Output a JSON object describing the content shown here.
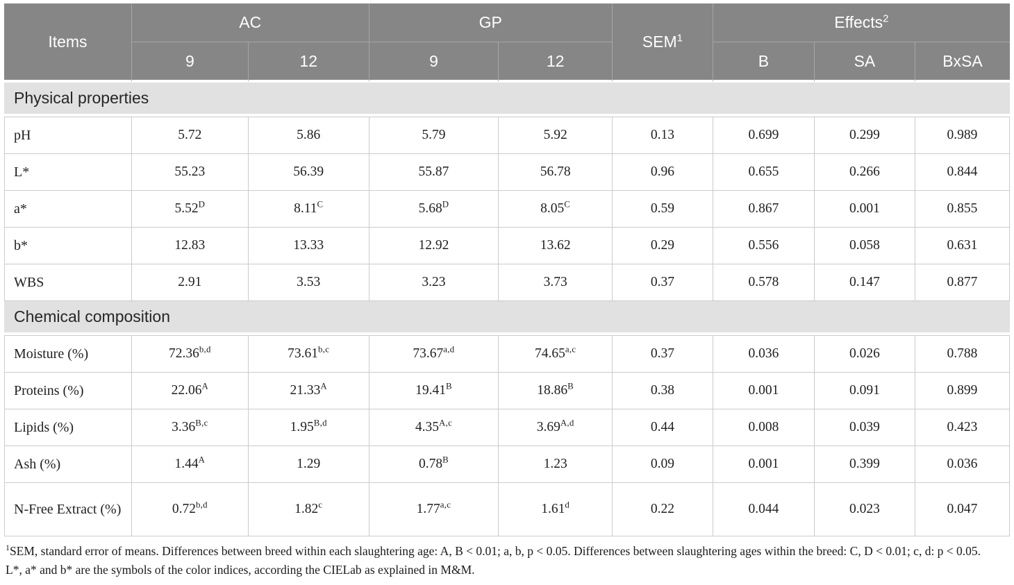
{
  "table": {
    "header": {
      "items_label": "Items",
      "groups": [
        {
          "label": "AC",
          "children": [
            "9",
            "12"
          ]
        },
        {
          "label": "GP",
          "children": [
            "9",
            "12"
          ]
        }
      ],
      "sem_label": "SEM^1",
      "effects": {
        "label": "Effects^2",
        "children": [
          "B",
          "SA",
          "BxSA"
        ]
      }
    },
    "col_widths_pct": [
      12.7,
      11.6,
      12.0,
      12.9,
      11.3,
      10.0,
      10.1,
      10.0,
      9.4
    ],
    "sections": [
      {
        "title": "Physical properties",
        "rows": [
          {
            "label": "pH",
            "cells": [
              "5.72",
              "5.86",
              "5.79",
              "5.92",
              "0.13",
              "0.699",
              "0.299",
              "0.989"
            ]
          },
          {
            "label": "L*",
            "cells": [
              "55.23",
              "56.39",
              "55.87",
              "56.78",
              "0.96",
              "0.655",
              "0.266",
              "0.844"
            ]
          },
          {
            "label": "a*",
            "cells": [
              "5.52^D",
              "8.11^C",
              "5.68^D",
              "8.05^C",
              "0.59",
              "0.867",
              "0.001",
              "0.855"
            ]
          },
          {
            "label": "b*",
            "cells": [
              "12.83",
              "13.33",
              "12.92",
              "13.62",
              "0.29",
              "0.556",
              "0.058",
              "0.631"
            ]
          },
          {
            "label": "WBS",
            "cells": [
              "2.91",
              "3.53",
              "3.23",
              "3.73",
              "0.37",
              "0.578",
              "0.147",
              "0.877"
            ]
          }
        ]
      },
      {
        "title": "Chemical composition",
        "rows": [
          {
            "label": "Moisture (%)",
            "cells": [
              "72.36^b,d",
              "73.61^b,c",
              "73.67^a,d",
              "74.65^a,c",
              "0.37",
              "0.036",
              "0.026",
              "0.788"
            ]
          },
          {
            "label": "Proteins (%)",
            "cells": [
              "22.06^A",
              "21.33^A",
              "19.41^B",
              "18.86^B",
              "0.38",
              "0.001",
              "0.091",
              "0.899"
            ]
          },
          {
            "label": "Lipids (%)",
            "cells": [
              "3.36^B,c",
              "1.95^B,d",
              "4.35^A,c",
              "3.69^A,d",
              "0.44",
              "0.008",
              "0.039",
              "0.423"
            ]
          },
          {
            "label": "Ash (%)",
            "cells": [
              "1.44^A",
              "1.29",
              "0.78^B",
              "1.23",
              "0.09",
              "0.001",
              "0.399",
              "0.036"
            ]
          },
          {
            "label": "N-Free Extract (%)",
            "tall": true,
            "cells": [
              "0.72^b,d",
              "1.82^c",
              "1.77^a,c",
              "1.61^d",
              "0.22",
              "0.044",
              "0.023",
              "0.047"
            ]
          }
        ]
      }
    ]
  },
  "footnotes": [
    {
      "sup": "1",
      "text": "SEM, standard error of means. Differences between breed within each slaughtering age: A, B < 0.01; a, b, p < 0.05. Differences between slaughtering ages within the breed: C, D < 0.01; c, d: p < 0.05."
    },
    {
      "sup": "",
      "text": "L*, a* and b* are the symbols of the color indices, according the CIELab as explained in M&M."
    }
  ],
  "colors": {
    "header_bg": "#868686",
    "header_text": "#ffffff",
    "section_bg": "#e1e1e1",
    "body_text": "#1f1f1f",
    "cell_border": "#cbcbcb"
  }
}
